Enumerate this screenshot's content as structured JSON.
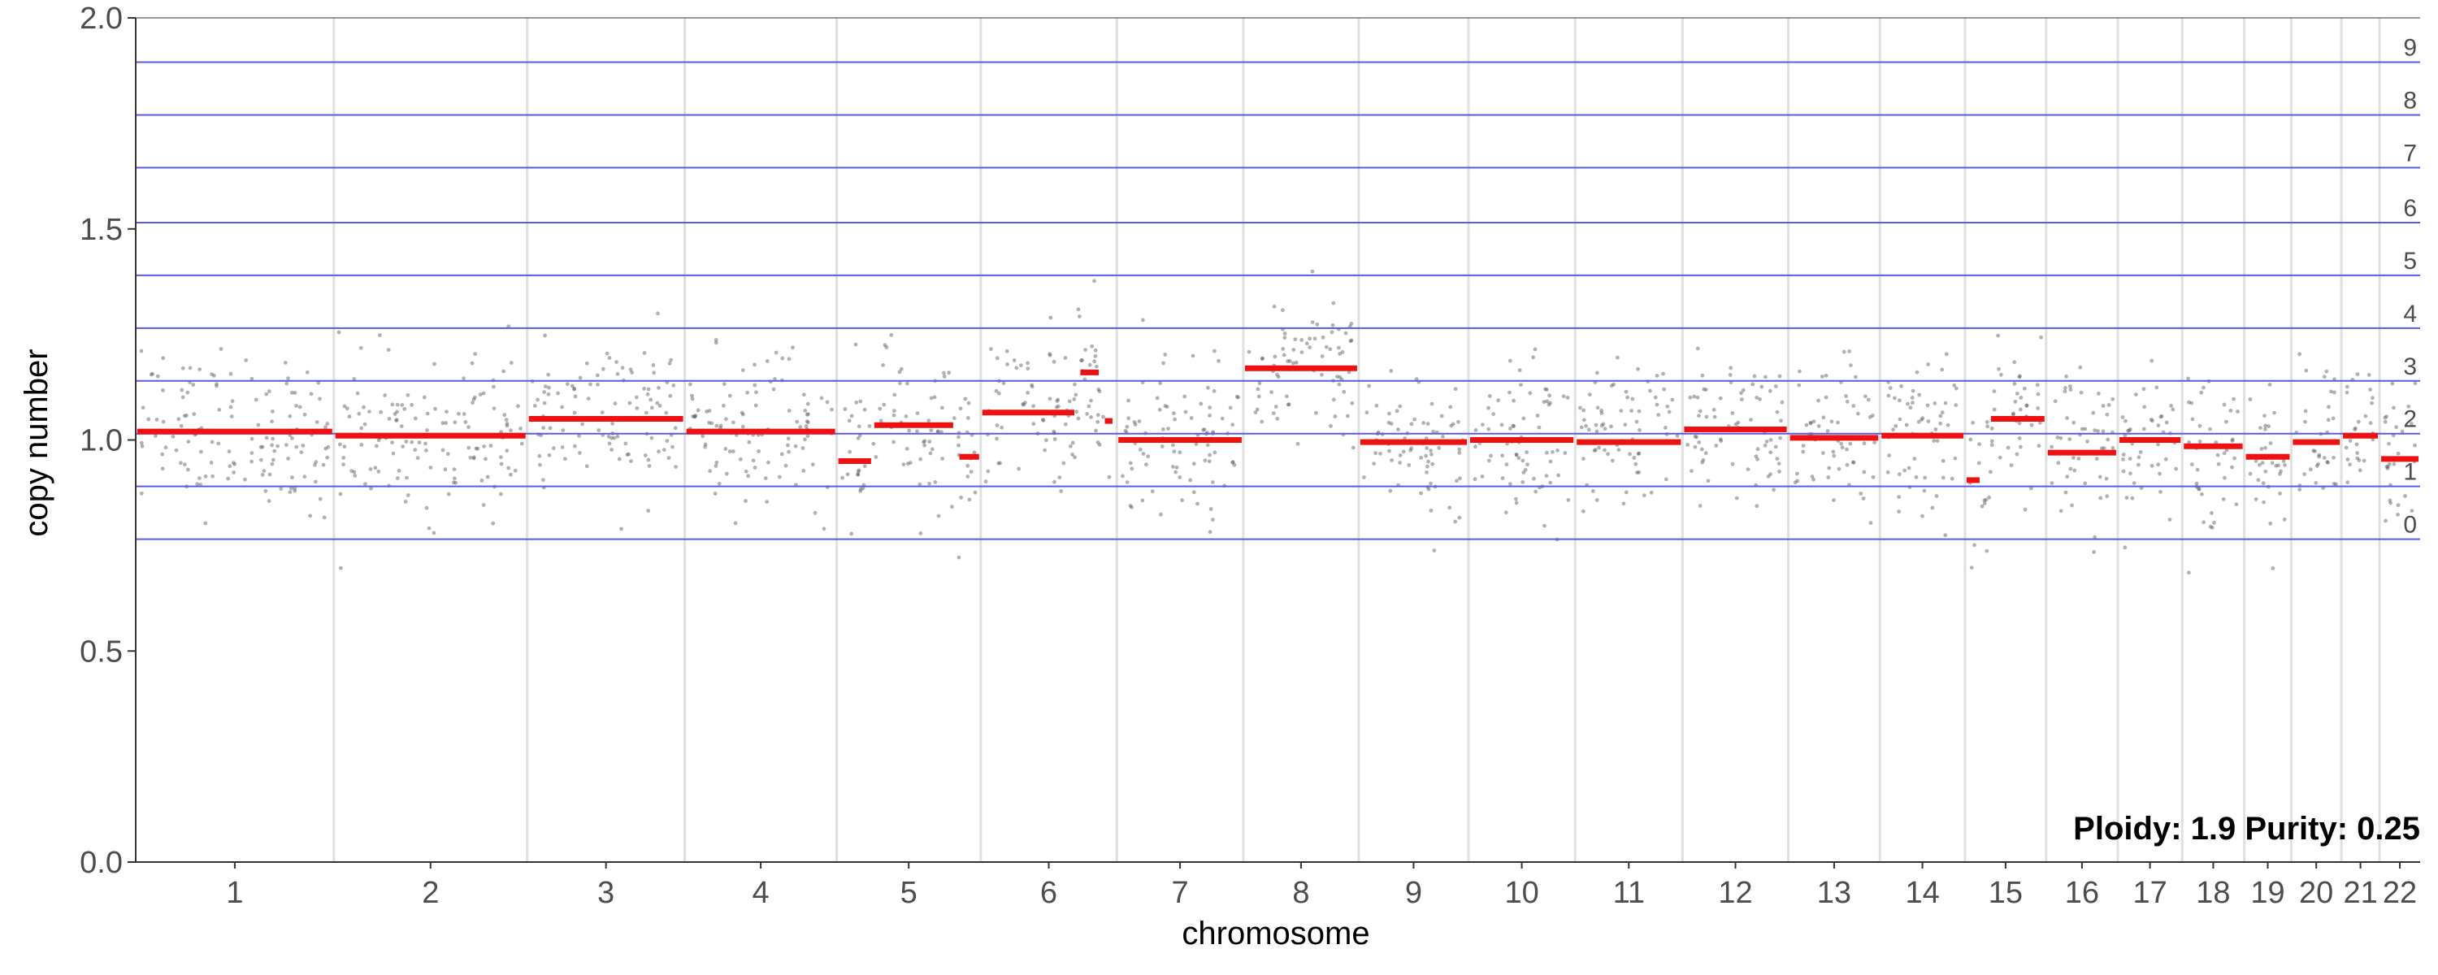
{
  "chart_data": {
    "type": "scatter",
    "xlabel": "chromosome",
    "ylabel": "copy number",
    "ylim": [
      0,
      2
    ],
    "y_ticks": [
      "0.0",
      "0.5",
      "1.0",
      "1.5",
      "2.0"
    ],
    "annotation": "Ploidy: 1.9 Purity: 0.25",
    "chromosomes": [
      "1",
      "2",
      "3",
      "4",
      "5",
      "6",
      "7",
      "8",
      "9",
      "10",
      "11",
      "12",
      "13",
      "14",
      "15",
      "16",
      "17",
      "18",
      "19",
      "20",
      "21",
      "22"
    ],
    "chromosome_widths": [
      249,
      243,
      198,
      191,
      181,
      171,
      159,
      145,
      138,
      134,
      135,
      133,
      115,
      107,
      102,
      90,
      81,
      78,
      59,
      63,
      48,
      51
    ],
    "copy_number_levels": [
      {
        "label": "0",
        "y": 0.765
      },
      {
        "label": "1",
        "y": 0.89
      },
      {
        "label": "2",
        "y": 1.015
      },
      {
        "label": "3",
        "y": 1.14
      },
      {
        "label": "4",
        "y": 1.265
      },
      {
        "label": "5",
        "y": 1.39
      },
      {
        "label": "6",
        "y": 1.515
      },
      {
        "label": "7",
        "y": 1.645
      },
      {
        "label": "8",
        "y": 1.77
      },
      {
        "label": "9",
        "y": 1.895
      }
    ],
    "segments": [
      {
        "chrom": "1",
        "start": 0.0,
        "end": 1.0,
        "value": 1.02
      },
      {
        "chrom": "2",
        "start": 0.0,
        "end": 1.0,
        "value": 1.01
      },
      {
        "chrom": "3",
        "start": 0.0,
        "end": 1.0,
        "value": 1.05
      },
      {
        "chrom": "4",
        "start": 0.0,
        "end": 1.0,
        "value": 1.02
      },
      {
        "chrom": "5",
        "start": 0.0,
        "end": 0.25,
        "value": 0.95
      },
      {
        "chrom": "5",
        "start": 0.25,
        "end": 0.82,
        "value": 1.035
      },
      {
        "chrom": "5",
        "start": 0.84,
        "end": 1.0,
        "value": 0.96
      },
      {
        "chrom": "6",
        "start": 0.0,
        "end": 0.7,
        "value": 1.065
      },
      {
        "chrom": "6",
        "start": 0.72,
        "end": 0.88,
        "value": 1.16
      },
      {
        "chrom": "6",
        "start": 0.9,
        "end": 0.98,
        "value": 1.045
      },
      {
        "chrom": "7",
        "start": 0.0,
        "end": 1.0,
        "value": 1.0
      },
      {
        "chrom": "8",
        "start": 0.0,
        "end": 1.0,
        "value": 1.17
      },
      {
        "chrom": "9",
        "start": 0.0,
        "end": 1.0,
        "value": 0.995
      },
      {
        "chrom": "10",
        "start": 0.0,
        "end": 1.0,
        "value": 1.0
      },
      {
        "chrom": "11",
        "start": 0.0,
        "end": 1.0,
        "value": 0.995
      },
      {
        "chrom": "12",
        "start": 0.0,
        "end": 1.0,
        "value": 1.025
      },
      {
        "chrom": "13",
        "start": 0.0,
        "end": 1.0,
        "value": 1.005
      },
      {
        "chrom": "14",
        "start": 0.0,
        "end": 1.0,
        "value": 1.01
      },
      {
        "chrom": "15",
        "start": 0.0,
        "end": 0.2,
        "value": 0.905
      },
      {
        "chrom": "15",
        "start": 0.3,
        "end": 1.0,
        "value": 1.05
      },
      {
        "chrom": "16",
        "start": 0.0,
        "end": 1.0,
        "value": 0.97
      },
      {
        "chrom": "17",
        "start": 0.0,
        "end": 1.0,
        "value": 1.0
      },
      {
        "chrom": "18",
        "start": 0.0,
        "end": 1.0,
        "value": 0.985
      },
      {
        "chrom": "19",
        "start": 0.0,
        "end": 1.0,
        "value": 0.96
      },
      {
        "chrom": "20",
        "start": 0.0,
        "end": 1.0,
        "value": 0.995
      },
      {
        "chrom": "21",
        "start": 0.0,
        "end": 1.0,
        "value": 1.01
      },
      {
        "chrom": "22",
        "start": 0.0,
        "end": 1.0,
        "value": 0.955
      }
    ],
    "bins_per_chromosome": 80,
    "point_noise_sd": 0.09
  },
  "colors": {
    "segment": "#ee1111",
    "level_line": "#5a5ae6",
    "grid_minor": "#e0e0e0",
    "points": "#555555",
    "axis": "#333333"
  }
}
